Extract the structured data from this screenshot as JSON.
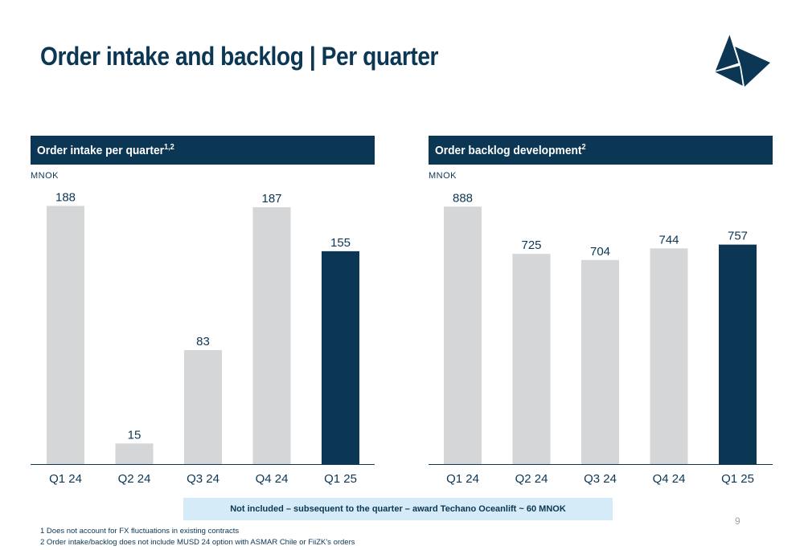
{
  "title": "Order intake and backlog | Per quarter",
  "logo": {
    "icon": "triangle-sail-logo-icon"
  },
  "colors": {
    "navy": "#0b3654",
    "grey_bar": "#d5d6d8",
    "note_bg": "#d6ebf8"
  },
  "panels": [
    {
      "header": "Order intake per quarter",
      "sup": "1,2",
      "unit": "MNOK"
    },
    {
      "header": "Order backlog development",
      "sup": "2",
      "unit": "MNOK"
    }
  ],
  "chart_data": [
    {
      "type": "bar",
      "title": "Order intake per quarter",
      "ylabel": "MNOK",
      "categories": [
        "Q1 24",
        "Q2 24",
        "Q3 24",
        "Q4 24",
        "Q1 25"
      ],
      "values": [
        188,
        15,
        83,
        187,
        155
      ],
      "highlight_index": 4,
      "ylim": [
        0,
        190
      ],
      "grid": false
    },
    {
      "type": "bar",
      "title": "Order backlog development",
      "ylabel": "MNOK",
      "categories": [
        "Q1 24",
        "Q2 24",
        "Q3 24",
        "Q4 24",
        "Q1 25"
      ],
      "values": [
        888,
        725,
        704,
        744,
        757
      ],
      "highlight_index": 4,
      "ylim": [
        0,
        900
      ],
      "grid": false
    }
  ],
  "note": "Not included – subsequent to the quarter – award Techano Oceanlift ~ 60 MNOK",
  "page_number": "9",
  "footnotes": [
    "1 Does not account for FX fluctuations in existing contracts",
    "2 Order intake/backlog does not include MUSD 24 option with ASMAR Chile or FiiZK's orders"
  ]
}
